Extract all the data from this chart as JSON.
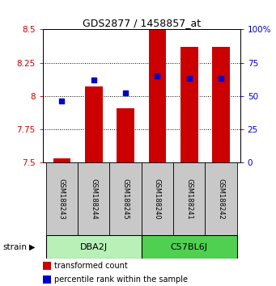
{
  "title": "GDS2877 / 1458857_at",
  "samples": [
    "GSM188243",
    "GSM188244",
    "GSM188245",
    "GSM188240",
    "GSM188241",
    "GSM188242"
  ],
  "groups": [
    {
      "name": "DBA2J",
      "indices": [
        0,
        1,
        2
      ]
    },
    {
      "name": "C57BL6J",
      "indices": [
        3,
        4,
        5
      ]
    }
  ],
  "transformed_counts": [
    7.53,
    8.07,
    7.91,
    8.5,
    8.37,
    8.37
  ],
  "percentile_ranks": [
    46,
    62,
    52,
    65,
    63,
    63
  ],
  "ylim_left": [
    7.5,
    8.5
  ],
  "ylim_right": [
    0,
    100
  ],
  "yticks_left": [
    7.5,
    7.75,
    8.0,
    8.25,
    8.5
  ],
  "ytick_labels_left": [
    "7.5",
    "7.75",
    "8",
    "8.25",
    "8.5"
  ],
  "yticks_right": [
    0,
    25,
    50,
    75,
    100
  ],
  "ytick_labels_right": [
    "0",
    "25",
    "50",
    "75",
    "100%"
  ],
  "bar_color": "#cc0000",
  "dot_color": "#0000cc",
  "bar_bottom": 7.5,
  "bg_color": "#ffffff",
  "strain_label": "strain",
  "legend_bar_label": "transformed count",
  "legend_dot_label": "percentile rank within the sample",
  "group_bg_colors": [
    "#b8f0b8",
    "#50d050"
  ],
  "sample_bg_color": "#c8c8c8",
  "title_fontsize": 9,
  "tick_fontsize": 7.5,
  "label_fontsize": 6,
  "group_fontsize": 8,
  "legend_fontsize": 7,
  "bar_width": 0.55,
  "dot_size": 4
}
